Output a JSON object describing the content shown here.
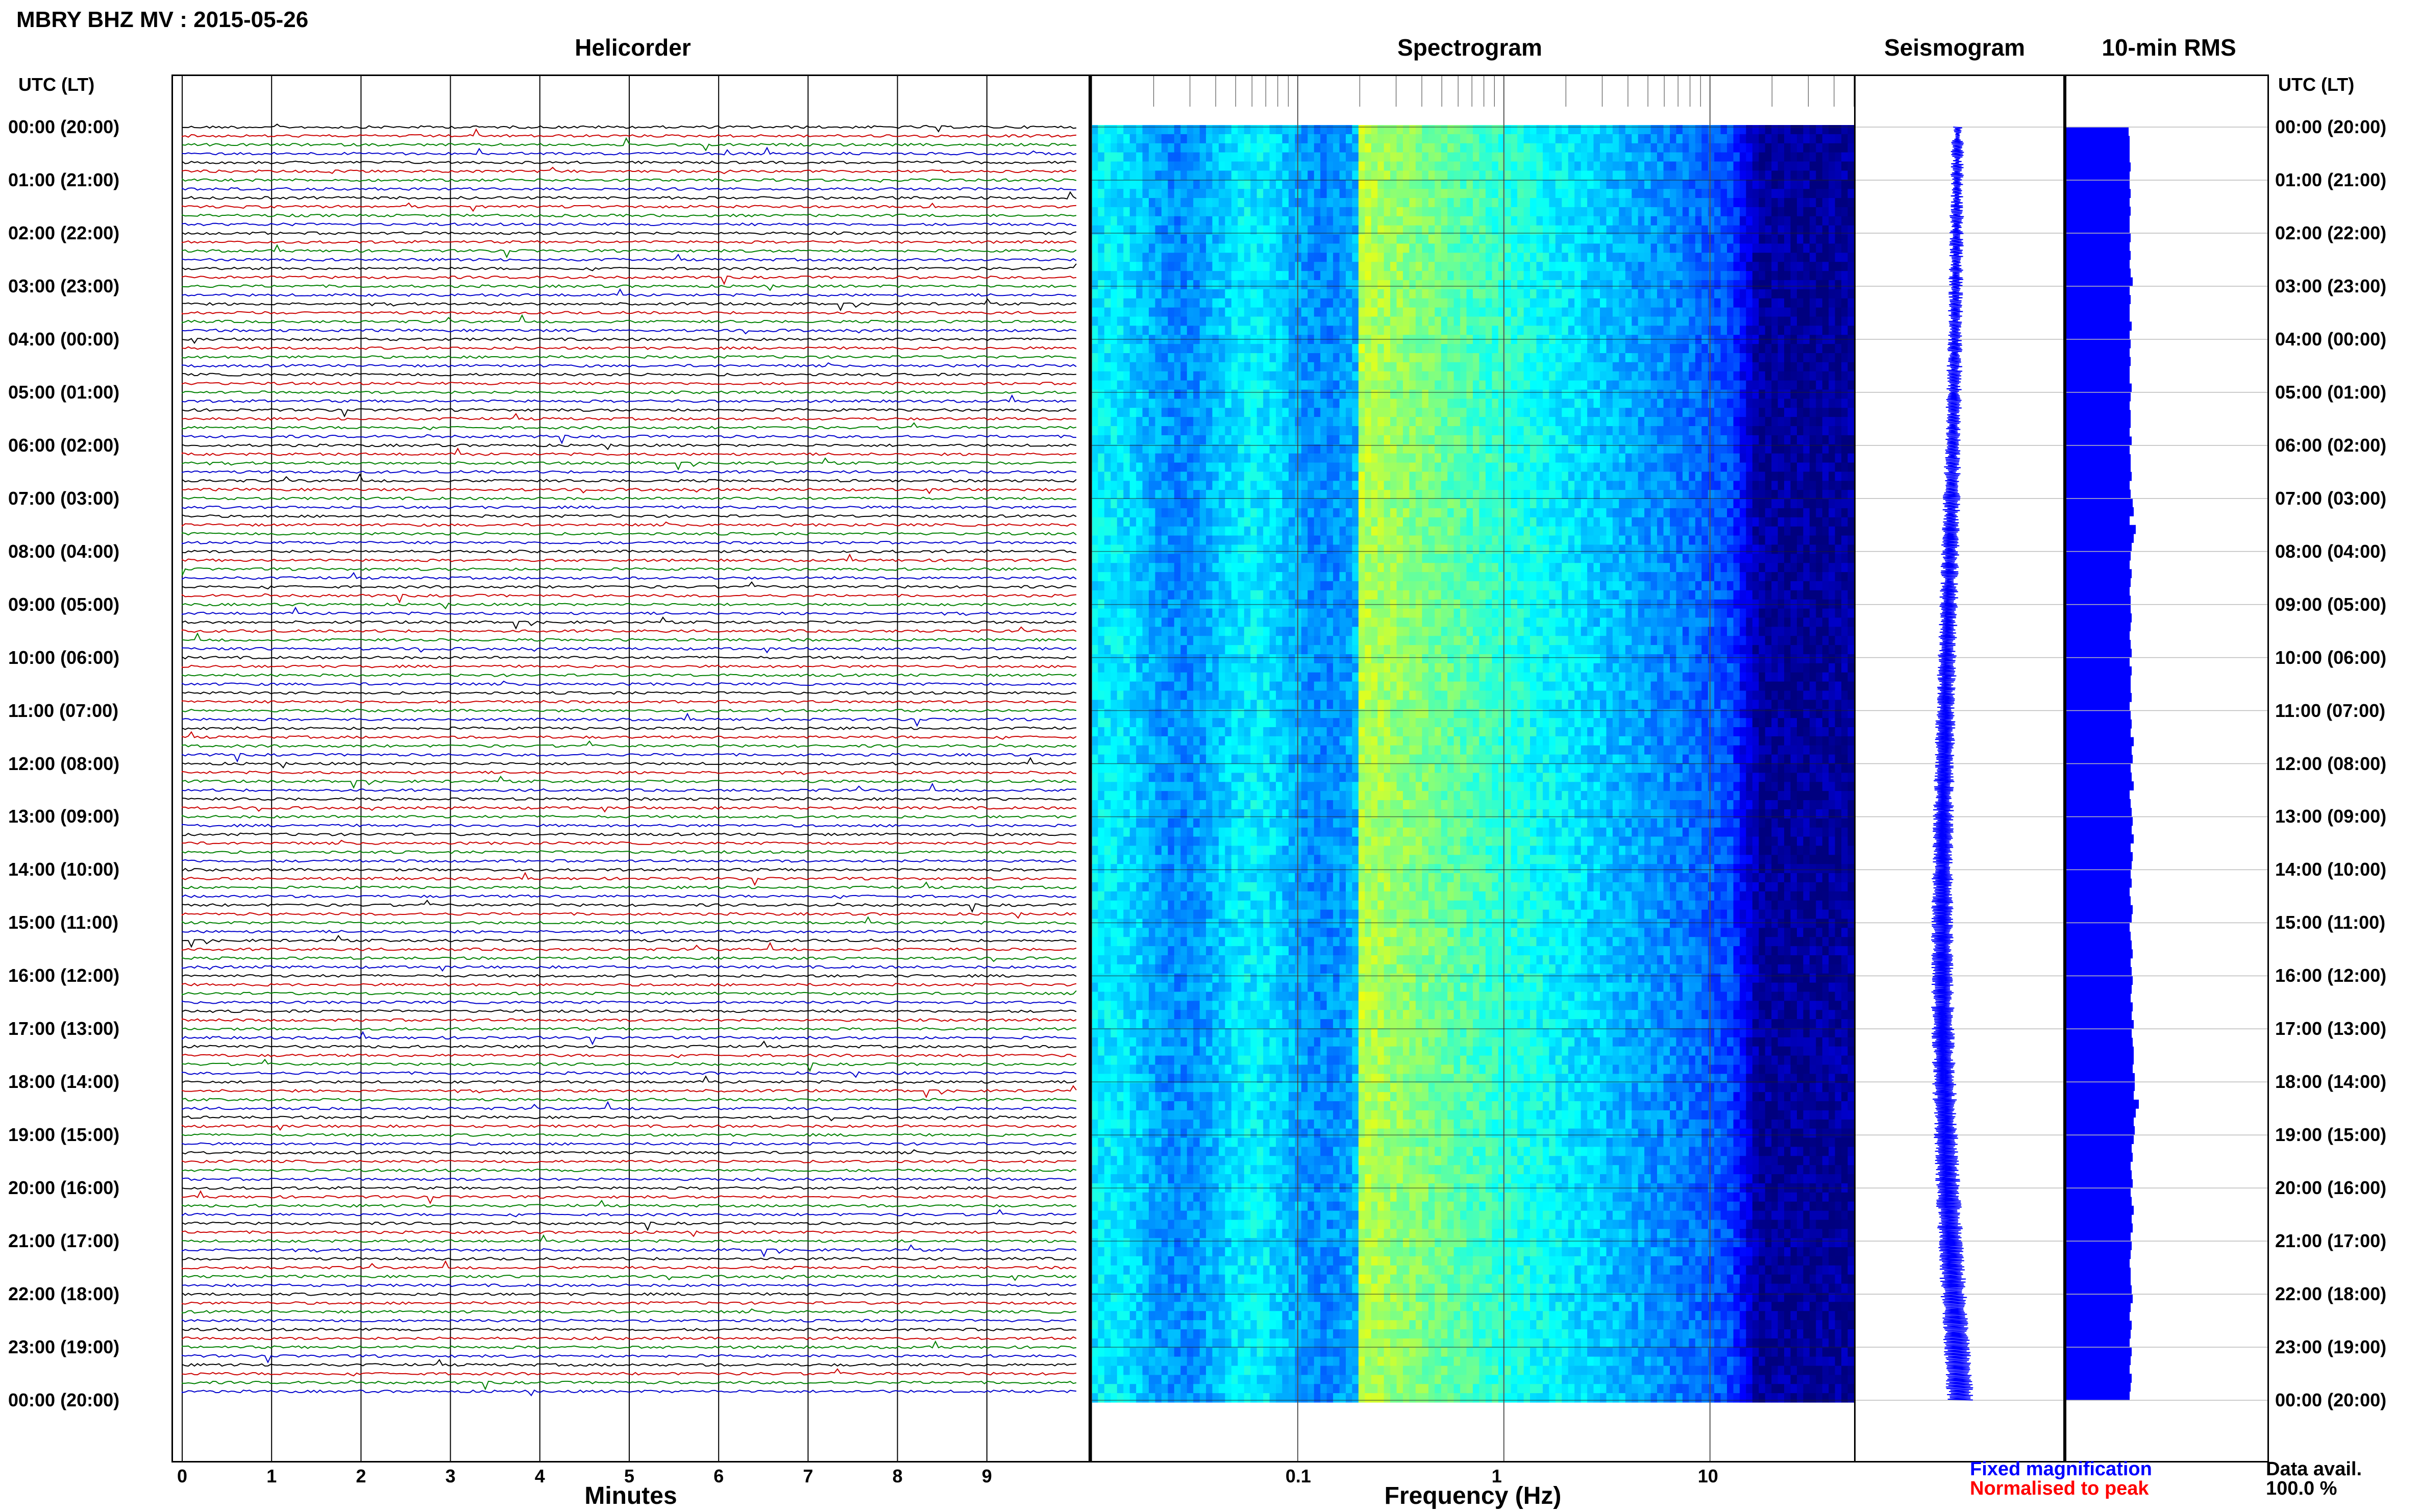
{
  "header": {
    "station_title": "MBRY BHZ MV : 2015-05-26"
  },
  "panels": {
    "helicorder": "Helicorder",
    "spectrogram": "Spectrogram",
    "seismogram": "Seismogram",
    "rms": "10-min RMS"
  },
  "time_axis": {
    "header": "UTC (LT)",
    "labels": [
      "00:00 (20:00)",
      "01:00 (21:00)",
      "02:00 (22:00)",
      "03:00 (23:00)",
      "04:00 (00:00)",
      "05:00 (01:00)",
      "06:00 (02:00)",
      "07:00 (03:00)",
      "08:00 (04:00)",
      "09:00 (05:00)",
      "10:00 (06:00)",
      "11:00 (07:00)",
      "12:00 (08:00)",
      "13:00 (09:00)",
      "14:00 (10:00)",
      "15:00 (11:00)",
      "16:00 (12:00)",
      "17:00 (13:00)",
      "18:00 (14:00)",
      "19:00 (15:00)",
      "20:00 (16:00)",
      "21:00 (17:00)",
      "22:00 (18:00)",
      "23:00 (19:00)",
      "00:00 (20:00)"
    ]
  },
  "footer": {
    "minutes_label": "Minutes",
    "frequency_label": "Frequency (Hz)",
    "fixed_magnification": "Fixed magnification",
    "normalised": "Normalised to peak",
    "data_avail_label": "Data avail.",
    "data_avail_value": "100.0 %"
  },
  "colors": {
    "trace_cycle": [
      "#000000",
      "#cc0000",
      "#008000",
      "#0000cc"
    ],
    "seismogram": "#0000ff",
    "rms_bars": "#0000ff",
    "fixed_magnification_text": "#0000ff",
    "normalised_text": "#ff0000",
    "spectrogram_scale": [
      "#00007f",
      "#0000ff",
      "#0080ff",
      "#00ffff",
      "#80ff80",
      "#ffff00"
    ]
  },
  "chart_data": [
    {
      "type": "line",
      "panel": "Helicorder",
      "xlabel": "Minutes",
      "xlim": [
        0,
        10
      ],
      "x_ticks": [
        0,
        1,
        2,
        3,
        4,
        5,
        6,
        7,
        8,
        9
      ],
      "rows_per_hour": 6,
      "row_minutes": 10
    },
    {
      "type": "heatmap",
      "panel": "Spectrogram",
      "xlabel": "Frequency (Hz)",
      "x_scale": "log",
      "xlim": [
        0.01,
        50
      ],
      "x_ticks": [
        0.1,
        1,
        10
      ],
      "x_tick_labels": [
        "0.1",
        "1",
        "10"
      ],
      "peak_band_hz": [
        0.2,
        0.3
      ]
    },
    {
      "type": "line",
      "panel": "Seismogram",
      "note_text": ""
    },
    {
      "type": "bar",
      "panel": "10-min RMS",
      "values": [
        0.61,
        0.62,
        0.62,
        0.62,
        0.63,
        0.62,
        0.62,
        0.63,
        0.62,
        0.63,
        0.62,
        0.62,
        0.63,
        0.62,
        0.63,
        0.62,
        0.63,
        0.65,
        0.62,
        0.63,
        0.62,
        0.62,
        0.64,
        0.62,
        0.63,
        0.62,
        0.63,
        0.62,
        0.62,
        0.64,
        0.63,
        0.62,
        0.63,
        0.63,
        0.62,
        0.64,
        0.62,
        0.63,
        0.63,
        0.64,
        0.62,
        0.63,
        0.65,
        0.66,
        0.62,
        0.68,
        0.66,
        0.64,
        0.63,
        0.62,
        0.64,
        0.63,
        0.62,
        0.63,
        0.63,
        0.64,
        0.63,
        0.62,
        0.63,
        0.64,
        0.62,
        0.64,
        0.63,
        0.63,
        0.64,
        0.62,
        0.63,
        0.64,
        0.63,
        0.66,
        0.64,
        0.65,
        0.63,
        0.64,
        0.66,
        0.62,
        0.63,
        0.64,
        0.65,
        0.64,
        0.66,
        0.63,
        0.65,
        0.64,
        0.63,
        0.64,
        0.62,
        0.63,
        0.65,
        0.64,
        0.62,
        0.63,
        0.64,
        0.65,
        0.63,
        0.64,
        0.65,
        0.64,
        0.63,
        0.65,
        0.64,
        0.66,
        0.64,
        0.65,
        0.66,
        0.66,
        0.65,
        0.67,
        0.67,
        0.66,
        0.71,
        0.68,
        0.66,
        0.67,
        0.66,
        0.64,
        0.65,
        0.63,
        0.64,
        0.65,
        0.63,
        0.64,
        0.66,
        0.64,
        0.65,
        0.63,
        0.64,
        0.63,
        0.62,
        0.63,
        0.63,
        0.64,
        0.65,
        0.63,
        0.62,
        0.64,
        0.63,
        0.62,
        0.64,
        0.63,
        0.62,
        0.64,
        0.63,
        0.62
      ]
    }
  ]
}
